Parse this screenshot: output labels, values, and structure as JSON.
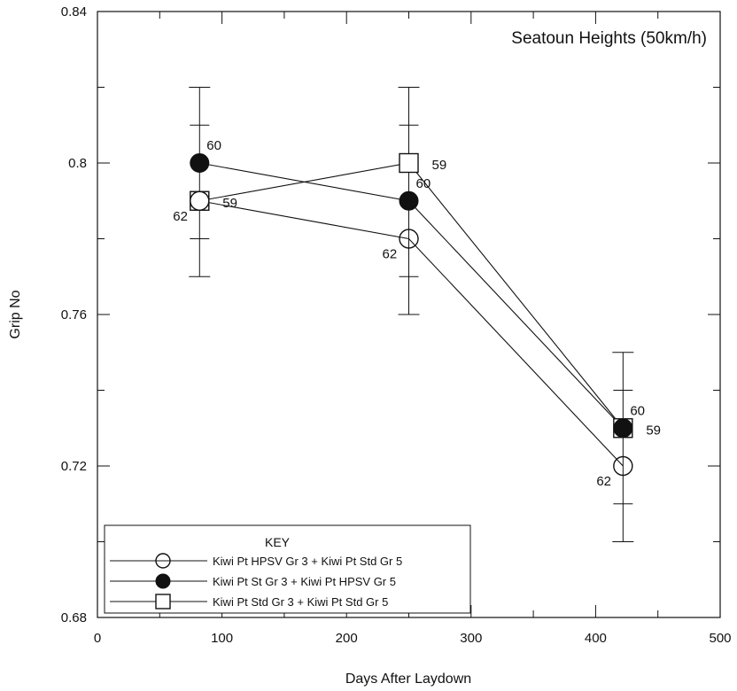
{
  "chart_data": {
    "type": "line",
    "title": "Seatoun Heights (50km/h)",
    "xlabel": "Days After Laydown",
    "ylabel": "Grip No",
    "xlim": [
      0,
      500
    ],
    "ylim": [
      0.68,
      0.84
    ],
    "x_ticks": [
      "0",
      "100",
      "200",
      "300",
      "400",
      "500"
    ],
    "y_ticks": [
      "0.68",
      "0.72",
      "0.76",
      "0.8",
      "0.84"
    ],
    "grid": false,
    "legend_title": "KEY",
    "legend_position": "bottom-left",
    "series": [
      {
        "name": "Kiwi Pt HPSV Gr 3 + Kiwi Pt Std Gr 5",
        "marker": "open-circle",
        "points": [
          {
            "x": 82,
            "y": 0.79,
            "label": "62"
          },
          {
            "x": 250,
            "y": 0.78,
            "label": "62"
          },
          {
            "x": 422,
            "y": 0.72,
            "label": "62"
          }
        ]
      },
      {
        "name": "Kiwi Pt St Gr 3 + Kiwi Pt HPSV Gr 5",
        "marker": "filled-circle",
        "points": [
          {
            "x": 82,
            "y": 0.8,
            "label": "60"
          },
          {
            "x": 250,
            "y": 0.79,
            "label": "60"
          },
          {
            "x": 422,
            "y": 0.73,
            "label": "60"
          }
        ]
      },
      {
        "name": "Kiwi Pt Std Gr 3 + Kiwi Pt Std Gr 5",
        "marker": "open-square",
        "points": [
          {
            "x": 82,
            "y": 0.79,
            "label": "59"
          },
          {
            "x": 250,
            "y": 0.8,
            "label": "59"
          },
          {
            "x": 422,
            "y": 0.73,
            "label": "59"
          }
        ]
      }
    ],
    "error_bars": [
      {
        "x": 82,
        "low": 0.77,
        "high": 0.82,
        "inner_low": 0.78,
        "inner_high": 0.81
      },
      {
        "x": 250,
        "low": 0.76,
        "high": 0.82,
        "inner_low": 0.77,
        "inner_high": 0.81
      },
      {
        "x": 422,
        "low": 0.7,
        "high": 0.75,
        "inner_low": 0.71,
        "inner_high": 0.74
      }
    ]
  }
}
